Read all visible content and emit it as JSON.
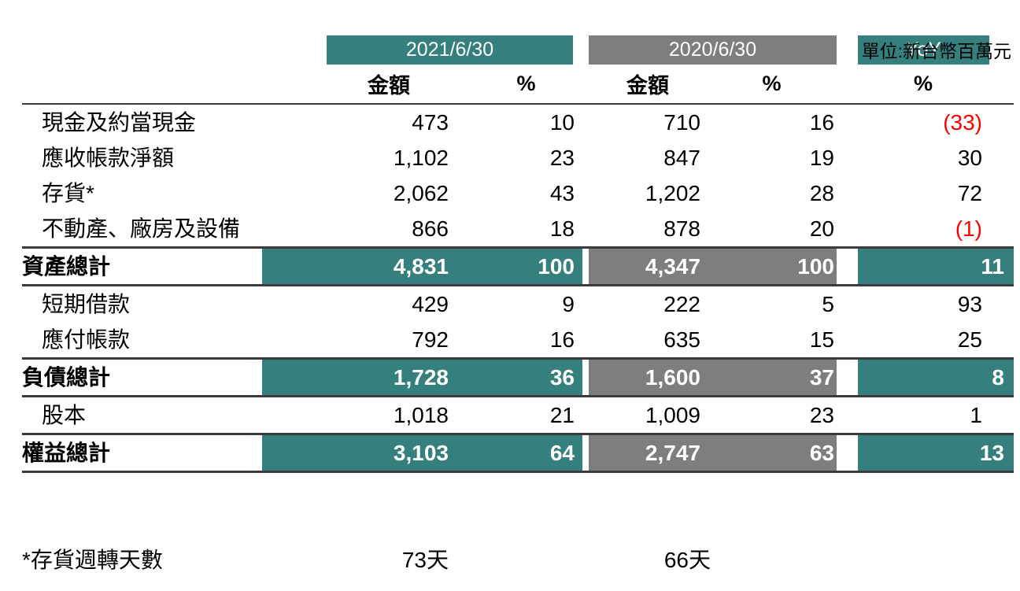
{
  "unit_note": "單位:新台幣百萬元",
  "colors": {
    "teal": "#357F7E",
    "gray": "#7E7E7E",
    "negative_red": "#FC0000",
    "line": "#3B3B3B",
    "total_row_text": "#FFFFFF"
  },
  "table": {
    "periods": [
      {
        "label": "2021/6/30"
      },
      {
        "label": "2020/6/30"
      },
      {
        "label": "YoY"
      }
    ],
    "sub_headers": {
      "amount": "金額",
      "percent": "%"
    },
    "rows": [
      {
        "label": "現金及約當現金",
        "total": false,
        "values": [
          "473",
          "10",
          "710",
          "16",
          "(33)"
        ],
        "yoy_negative": true
      },
      {
        "label": "應收帳款淨額",
        "total": false,
        "values": [
          "1,102",
          "23",
          "847",
          "19",
          "30"
        ],
        "yoy_negative": false
      },
      {
        "label": "存貨*",
        "total": false,
        "values": [
          "2,062",
          "43",
          "1,202",
          "28",
          "72"
        ],
        "yoy_negative": false
      },
      {
        "label": "不動產、廠房及設備",
        "total": false,
        "values": [
          "866",
          "18",
          "878",
          "20",
          "(1)"
        ],
        "yoy_negative": true
      },
      {
        "label": "資產總計",
        "total": true,
        "values": [
          "4,831",
          "100",
          "4,347",
          "100",
          "11"
        ],
        "yoy_negative": false
      },
      {
        "label": "短期借款",
        "total": false,
        "values": [
          "429",
          "9",
          "222",
          "5",
          "93"
        ],
        "yoy_negative": false
      },
      {
        "label": "應付帳款",
        "total": false,
        "values": [
          "792",
          "16",
          "635",
          "15",
          "25"
        ],
        "yoy_negative": false
      },
      {
        "label": "負債總計",
        "total": true,
        "values": [
          "1,728",
          "36",
          "1,600",
          "37",
          "8"
        ],
        "yoy_negative": false
      },
      {
        "label": "股本",
        "total": false,
        "values": [
          "1,018",
          "21",
          "1,009",
          "23",
          "1"
        ],
        "yoy_negative": false
      },
      {
        "label": "權益總計",
        "total": true,
        "values": [
          "3,103",
          "64",
          "2,747",
          "63",
          "13"
        ],
        "yoy_negative": false
      }
    ],
    "footnote": {
      "label": "*存貨週轉天數",
      "days_2021": "73天",
      "days_2020": "66天"
    }
  },
  "chart_data": {
    "type": "table",
    "unit_note": "單位:新台幣百萬元",
    "columns": [
      "",
      "2021/6/30 金額",
      "2021/6/30 %",
      "2020/6/30 金額",
      "2020/6/30 %",
      "YoY %"
    ],
    "rows": [
      [
        "現金及約當現金",
        473,
        10,
        710,
        16,
        -33
      ],
      [
        "應收帳款淨額",
        1102,
        23,
        847,
        19,
        30
      ],
      [
        "存貨*",
        2062,
        43,
        1202,
        28,
        72
      ],
      [
        "不動產、廠房及設備",
        866,
        18,
        878,
        20,
        -1
      ],
      [
        "資產總計",
        4831,
        100,
        4347,
        100,
        11
      ],
      [
        "短期借款",
        429,
        9,
        222,
        5,
        93
      ],
      [
        "應付帳款",
        792,
        16,
        635,
        15,
        25
      ],
      [
        "負債總計",
        1728,
        36,
        1600,
        37,
        8
      ],
      [
        "股本",
        1018,
        21,
        1009,
        23,
        1
      ],
      [
        "權益總計",
        3103,
        64,
        2747,
        63,
        13
      ]
    ],
    "total_rows": [
      "資產總計",
      "負債總計",
      "權益總計"
    ],
    "footnote_row": [
      "*存貨週轉天數",
      "73天",
      "66天"
    ],
    "notes": "negative YoY values shown in red parentheses"
  }
}
